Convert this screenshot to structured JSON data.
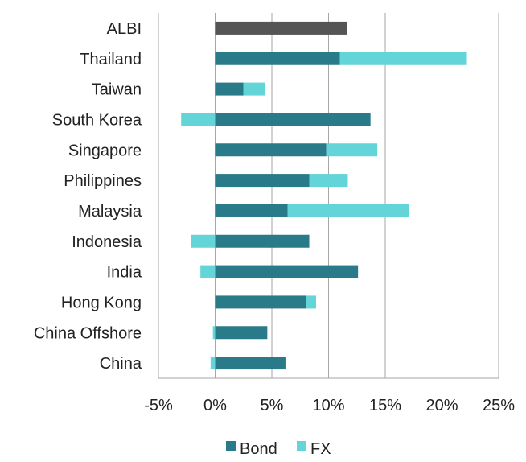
{
  "chart_data": {
    "type": "bar",
    "orientation": "horizontal",
    "stacked": true,
    "categories": [
      "ALBI",
      "Thailand",
      "Taiwan",
      "South Korea",
      "Singapore",
      "Philippines",
      "Malaysia",
      "Indonesia",
      "India",
      "Hong Kong",
      "China Offshore",
      "China"
    ],
    "series": [
      {
        "name": "Bond",
        "color": "#2a7b89",
        "values": [
          null,
          11.0,
          2.5,
          13.7,
          9.8,
          8.3,
          6.4,
          8.3,
          12.6,
          8.0,
          4.6,
          6.2
        ]
      },
      {
        "name": "FX",
        "color": "#63d4d8",
        "values": [
          null,
          11.2,
          1.9,
          -3.0,
          4.5,
          3.4,
          10.7,
          -2.1,
          -1.3,
          0.9,
          -0.2,
          -0.4
        ]
      }
    ],
    "total": {
      "color": "#555555",
      "values": [
        11.6,
        null,
        null,
        null,
        null,
        null,
        null,
        null,
        null,
        null,
        null,
        null
      ]
    },
    "xlim": [
      -5,
      25
    ],
    "xticks": [
      "-5%",
      "0%",
      "5%",
      "10%",
      "15%",
      "20%",
      "25%"
    ],
    "tick_values": [
      -5,
      0,
      5,
      10,
      15,
      20,
      25
    ],
    "grid": "vertical",
    "legend_position": "bottom"
  }
}
